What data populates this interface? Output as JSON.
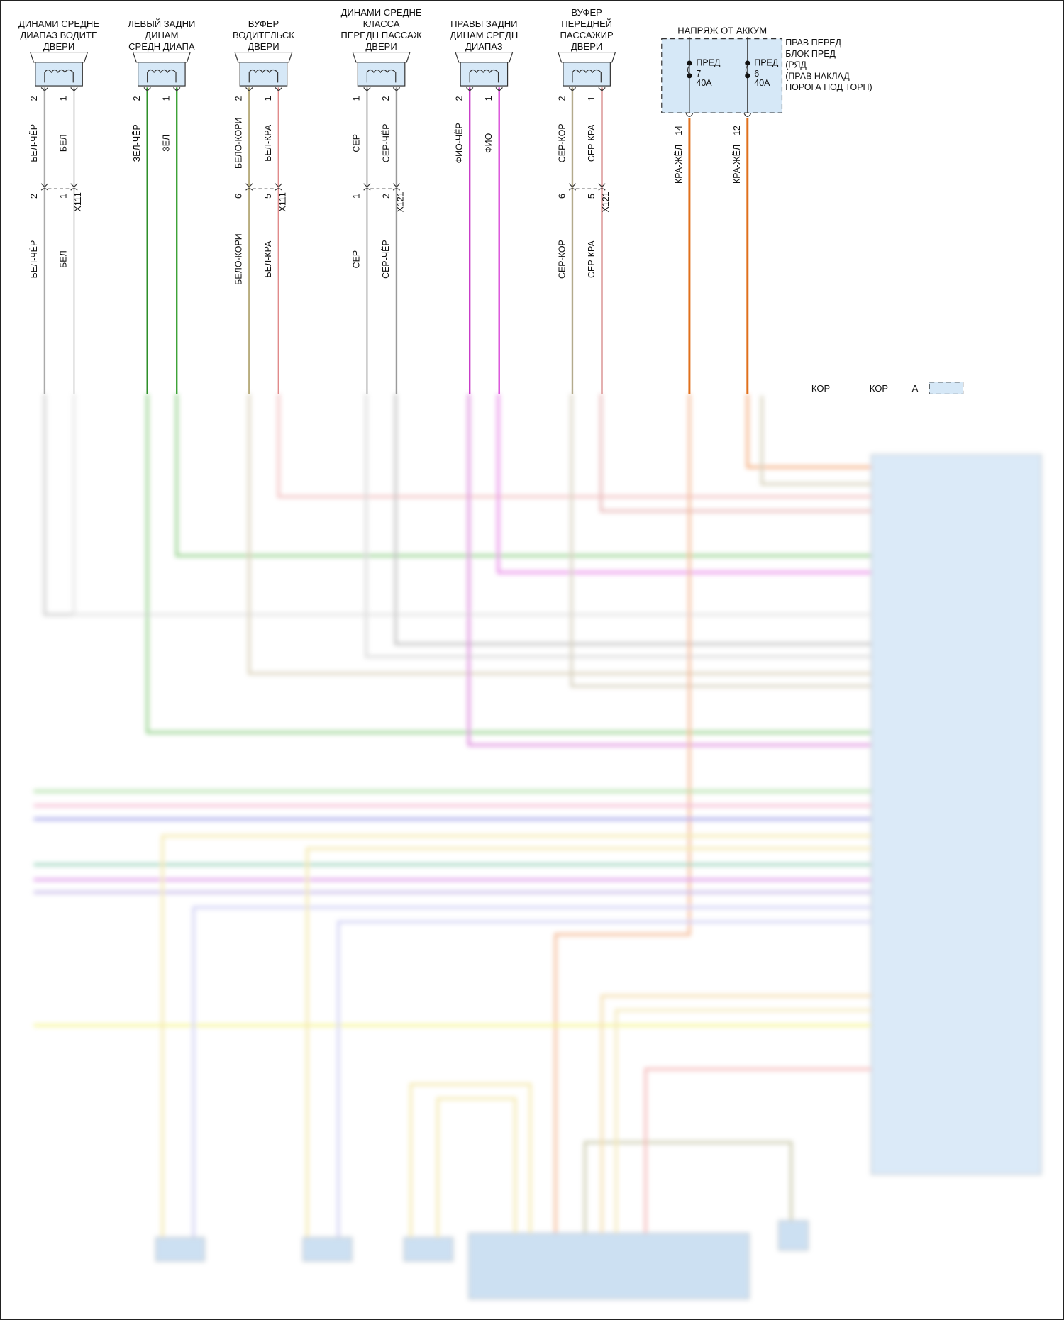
{
  "speakers": [
    {
      "title": [
        "ДИНАМИ СРЕДНЕ",
        "ДИАПАЗ ВОДИТЕ",
        "ДВЕРИ"
      ],
      "pins": [
        "2",
        "1"
      ],
      "wires": [
        "БЕЛ-ЧЁР",
        "БЕЛ"
      ],
      "colors": [
        "#a9a9a9",
        "#dcdcdc"
      ],
      "conn_pins": [
        "2",
        "1"
      ],
      "connector": "X111"
    },
    {
      "title": [
        "ЛЕВЫЙ ЗАДНИ",
        "ДИНАМ",
        "СРЕДН ДИАПА"
      ],
      "pins": [
        "2",
        "1"
      ],
      "wires": [
        "ЗЕЛ-ЧЁР",
        "ЗЕЛ"
      ],
      "colors": [
        "#2f8f2a",
        "#3aa034"
      ],
      "conn_pins": [],
      "connector": ""
    },
    {
      "title": [
        "ВУФЕР",
        "ВОДИТЕЛЬСК",
        "ДВЕРИ"
      ],
      "pins": [
        "2",
        "1"
      ],
      "wires": [
        "БЕЛО-КОРИ",
        "БЕЛ-КРА"
      ],
      "colors": [
        "#b8ad7e",
        "#e08a8a"
      ],
      "conn_pins": [
        "6",
        "5"
      ],
      "connector": "X111"
    },
    {
      "title": [
        "ДИНАМИ СРЕДНЕ",
        "КЛАССА",
        "ПЕРЕДН ПАССАЖ",
        "ДВЕРИ"
      ],
      "pins": [
        "1",
        "2"
      ],
      "wires": [
        "СЕР",
        "СЕР-ЧЁР"
      ],
      "colors": [
        "#c0c0c0",
        "#9a9a9a"
      ],
      "conn_pins": [
        "1",
        "2"
      ],
      "connector": "X121"
    },
    {
      "title": [
        "ПРАВЫ ЗАДНИ",
        "ДИНАМ СРЕДН",
        "ДИАПАЗ"
      ],
      "pins": [
        "2",
        "1"
      ],
      "wires": [
        "ФИО-ЧЁР",
        "ФИО"
      ],
      "colors": [
        "#c83cc8",
        "#d848d8"
      ],
      "conn_pins": [],
      "connector": ""
    },
    {
      "title": [
        "ВУФЕР",
        "ПЕРЕДНЕЙ",
        "ПАССАЖИР",
        "ДВЕРИ"
      ],
      "pins": [
        "2",
        "1"
      ],
      "wires": [
        "СЕР-КОР",
        "СЕР-КРА"
      ],
      "colors": [
        "#b3aa8c",
        "#d88c8c"
      ],
      "conn_pins": [
        "6",
        "5"
      ],
      "connector": "X121"
    }
  ],
  "second_wire_labels": [
    [
      "БЕЛ-ЧЁР",
      "БЕЛ"
    ],
    [],
    [
      "БЕЛО-КОРИ",
      "БЕЛ-КРА"
    ],
    [
      "СЕР",
      "СЕР-ЧЁР"
    ],
    [],
    [
      "СЕР-КОР",
      "СЕР-КРА"
    ]
  ],
  "fuse_block": {
    "supply_label": "НАПРЯЖ ОТ АККУМ",
    "location": [
      "ПРАВ ПЕРЕД",
      "БЛОК ПРЕД",
      "(РЯД",
      "(ПРАВ НАКЛАД",
      "ПОРОГА ПОД ТОРП)"
    ],
    "fuses": [
      {
        "name": "ПРЕД",
        "number": "7",
        "rating": "40A",
        "pin": "14",
        "wire": "КРА-ЖЁЛ"
      },
      {
        "name": "ПРЕД",
        "number": "6",
        "rating": "40A",
        "pin": "12",
        "wire": "КРА-ЖЁЛ"
      }
    ],
    "wire_color": "#e0701c",
    "fill_color": "#d6e8f7"
  },
  "ground": {
    "labels": [
      "КОР",
      "КОР",
      "А"
    ]
  },
  "module_fill": "#cfe3f6"
}
